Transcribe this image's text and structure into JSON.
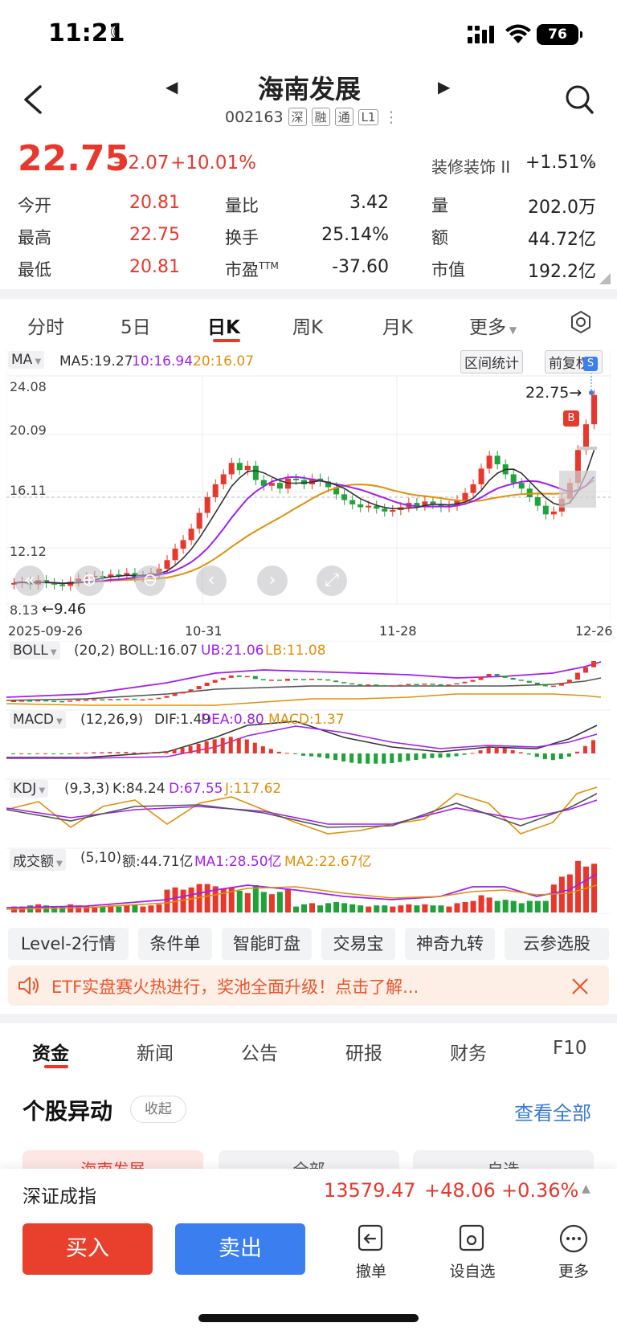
{
  "status_bar": {
    "time": "11:21",
    "battery": "76"
  },
  "header": {
    "title": "海南发展",
    "code": "002163",
    "tags": [
      "深",
      "融",
      "通",
      "L1"
    ]
  },
  "price": {
    "last": "22.75",
    "change": "+2.07",
    "change_pct": "+10.01%",
    "sector_name": "装修装饰 II",
    "sector_pct": "+1.51%"
  },
  "quote": {
    "open_label": "今开",
    "open": "20.81",
    "high_label": "最高",
    "high": "22.75",
    "low_label": "最低",
    "low": "20.81",
    "vol_ratio_label": "量比",
    "vol_ratio": "3.42",
    "turnover_label": "换手",
    "turnover": "25.14%",
    "pe_label": "市盈",
    "pe_sup": "TTM",
    "pe": "-37.60",
    "volume_label": "量",
    "volume": "202.0万",
    "amount_label": "额",
    "amount": "44.72亿",
    "mktcap_label": "市值",
    "mktcap": "192.2亿"
  },
  "period_tabs": [
    "分时",
    "5日",
    "日K",
    "周K",
    "月K",
    "更多"
  ],
  "chart": {
    "ma_label": "MA",
    "ma5": "MA5:19.27",
    "ma10": "10:16.94",
    "ma20": "20:16.07",
    "range_stats": "区间统计",
    "adjust": "前复权",
    "y_ticks": [
      "24.08",
      "20.09",
      "16.11",
      "12.12",
      "8.13"
    ],
    "low_mark": "←9.46",
    "high_mark": "22.75→",
    "dates": [
      "2025-09-26",
      "10-31",
      "11-28",
      "12-26"
    ],
    "buy_marker": "B",
    "sell_marker": "S",
    "colors": {
      "up": "#e8372c",
      "down": "#1fa23a",
      "ma5": "#333333",
      "ma10": "#a020f0",
      "ma20": "#e0900a"
    }
  },
  "indicators": {
    "boll": {
      "name": "BOLL",
      "params": "(20,2)",
      "v1": "BOLL:16.07",
      "v2": "UB:21.06",
      "v3": "LB:11.08"
    },
    "macd": {
      "name": "MACD",
      "params": "(12,26,9)",
      "v1": "DIF:1.49",
      "v2": "DEA:0.80",
      "v3": "MACD:1.37"
    },
    "kdj": {
      "name": "KDJ",
      "params": "(9,3,3)",
      "v1": "K:84.24",
      "v2": "D:67.55",
      "v3": "J:117.62"
    },
    "amount": {
      "name": "成交额",
      "params": "(5,10)",
      "v1": "额:44.71亿",
      "v2": "MA1:28.50亿",
      "v3": "MA2:22.67亿"
    }
  },
  "tools": [
    "Level-2行情",
    "条件单",
    "智能盯盘",
    "交易宝",
    "神奇九转",
    "云参选股"
  ],
  "banner": {
    "text": "ETF实盘赛火热进行，奖池全面升级！点击了解..."
  },
  "news_tabs": [
    "资金",
    "新闻",
    "公告",
    "研报",
    "财务",
    "F10"
  ],
  "section": {
    "title": "个股异动",
    "collapse": "收起",
    "view_all": "查看全部",
    "subtabs": [
      "海南发展",
      "全部",
      "自选"
    ]
  },
  "bottom": {
    "index_name": "深证成指",
    "index_value": "13579.47",
    "index_change": "+48.06",
    "index_pct": "+0.36%",
    "buy": "买入",
    "sell": "卖出",
    "cancel": "撤单",
    "watch": "设自选",
    "more": "更多"
  }
}
